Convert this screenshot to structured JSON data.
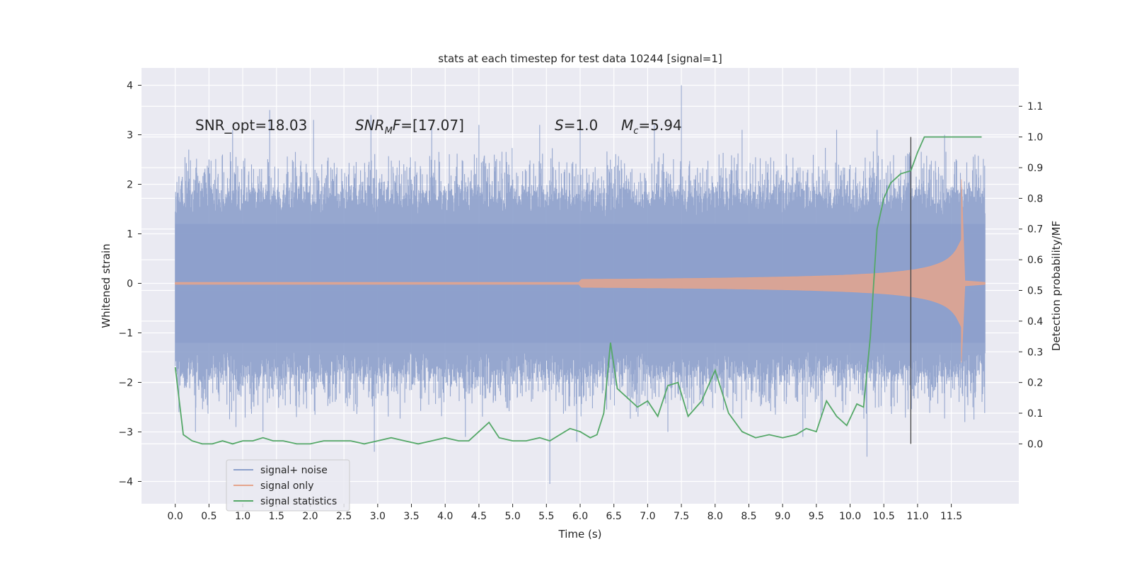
{
  "chart_data": {
    "type": "line",
    "title": "stats at each timestep for test data 10244 [signal=1]",
    "xlabel": "Time (s)",
    "ylabel_left": "Whitened strain",
    "ylabel_right": "Detection probability/MF",
    "xlim": [
      -0.5,
      12.5
    ],
    "ylim_left": [
      -4.45,
      4.35
    ],
    "ylim_right": [
      -0.195,
      1.225
    ],
    "x_ticks": [
      "0.0",
      "0.5",
      "1.0",
      "1.5",
      "2.0",
      "2.5",
      "3.0",
      "3.5",
      "4.0",
      "4.5",
      "5.0",
      "5.5",
      "6.0",
      "6.5",
      "7.0",
      "7.5",
      "8.0",
      "8.5",
      "9.0",
      "9.5",
      "10.0",
      "10.5",
      "11.0",
      "11.5"
    ],
    "y_ticks_left": [
      "4",
      "3",
      "2",
      "1",
      "0",
      "−1",
      "−2",
      "−3",
      "−4"
    ],
    "y_ticks_right": [
      "1.1",
      "1.0",
      "0.9",
      "0.8",
      "0.7",
      "0.6",
      "0.5",
      "0.4",
      "0.3",
      "0.2",
      "0.1",
      "0.0"
    ],
    "grid": true,
    "legend_position": "lower-left",
    "annotations": {
      "snr_opt": "SNR_opt=18.03",
      "snr_mf_main": "SNR",
      "snr_mf_sub": "M",
      "snr_mf_rest": "F=[17.07]",
      "s_italic": "S",
      "s_rest": "=1.0",
      "mc_italic": "M",
      "mc_sub": "c",
      "mc_rest": "=5.94"
    },
    "vertical_line_x": 10.9,
    "series": [
      {
        "name": "signal+ noise",
        "color": "#8da0cb",
        "description_range": [
          0.0,
          12.0
        ],
        "envelope_core": 1.2,
        "peaks_up": [
          [
            0.1,
            2.1
          ],
          [
            0.2,
            2.7
          ],
          [
            0.5,
            2.5
          ],
          [
            0.7,
            2.6
          ],
          [
            0.85,
            3.1
          ],
          [
            1.4,
            3.5
          ],
          [
            2.05,
            3.3
          ],
          [
            2.9,
            3.4
          ],
          [
            3.8,
            3.2
          ],
          [
            4.5,
            3.2
          ],
          [
            5.4,
            3.2
          ],
          [
            6.0,
            3.3
          ],
          [
            7.1,
            3.2
          ],
          [
            7.5,
            4.0
          ],
          [
            8.4,
            3.1
          ],
          [
            9.8,
            3.1
          ],
          [
            10.4,
            3.1
          ],
          [
            11.4,
            3.0
          ]
        ],
        "peaks_down": [
          [
            0.3,
            -3.0
          ],
          [
            0.9,
            -2.9
          ],
          [
            1.3,
            -3.0
          ],
          [
            2.95,
            -3.4
          ],
          [
            4.3,
            -3.1
          ],
          [
            5.55,
            -4.05
          ],
          [
            5.95,
            -3.2
          ],
          [
            7.3,
            -3.0
          ],
          [
            9.3,
            -3.1
          ],
          [
            10.25,
            -3.5
          ],
          [
            11.7,
            -2.8
          ]
        ]
      },
      {
        "name": "signal only",
        "color": "#e5a48c",
        "chirp_start": 6.0,
        "chirp_peak_time": 11.65,
        "chirp_peak_amp_up": 2.1,
        "chirp_peak_amp_down": -1.6,
        "chirp_end": 11.7
      },
      {
        "name": "signal statistics",
        "color": "#55a868",
        "axis": "right",
        "x": [
          0.0,
          0.12,
          0.25,
          0.4,
          0.55,
          0.7,
          0.85,
          1.0,
          1.15,
          1.3,
          1.45,
          1.6,
          1.8,
          2.0,
          2.2,
          2.4,
          2.6,
          2.8,
          3.0,
          3.2,
          3.4,
          3.6,
          3.8,
          4.0,
          4.2,
          4.35,
          4.5,
          4.65,
          4.8,
          5.0,
          5.2,
          5.4,
          5.55,
          5.7,
          5.85,
          6.0,
          6.15,
          6.25,
          6.35,
          6.45,
          6.55,
          6.7,
          6.85,
          7.0,
          7.15,
          7.3,
          7.45,
          7.6,
          7.8,
          8.0,
          8.2,
          8.4,
          8.6,
          8.8,
          9.0,
          9.2,
          9.35,
          9.5,
          9.65,
          9.8,
          9.95,
          10.1,
          10.2,
          10.3,
          10.4,
          10.5,
          10.6,
          10.75,
          10.9,
          11.0,
          11.1,
          11.3,
          11.6,
          11.95
        ],
        "y": [
          0.25,
          0.03,
          0.01,
          0.0,
          0.0,
          0.01,
          0.0,
          0.01,
          0.01,
          0.02,
          0.01,
          0.01,
          0.0,
          0.0,
          0.01,
          0.01,
          0.01,
          0.0,
          0.01,
          0.02,
          0.01,
          0.0,
          0.01,
          0.02,
          0.01,
          0.01,
          0.04,
          0.07,
          0.02,
          0.01,
          0.01,
          0.02,
          0.01,
          0.03,
          0.05,
          0.04,
          0.02,
          0.03,
          0.1,
          0.33,
          0.18,
          0.15,
          0.12,
          0.14,
          0.09,
          0.19,
          0.2,
          0.09,
          0.14,
          0.24,
          0.1,
          0.04,
          0.02,
          0.03,
          0.02,
          0.03,
          0.05,
          0.04,
          0.14,
          0.09,
          0.06,
          0.13,
          0.12,
          0.35,
          0.7,
          0.8,
          0.85,
          0.88,
          0.89,
          0.95,
          1.0,
          1.0,
          1.0,
          1.0
        ]
      }
    ]
  }
}
